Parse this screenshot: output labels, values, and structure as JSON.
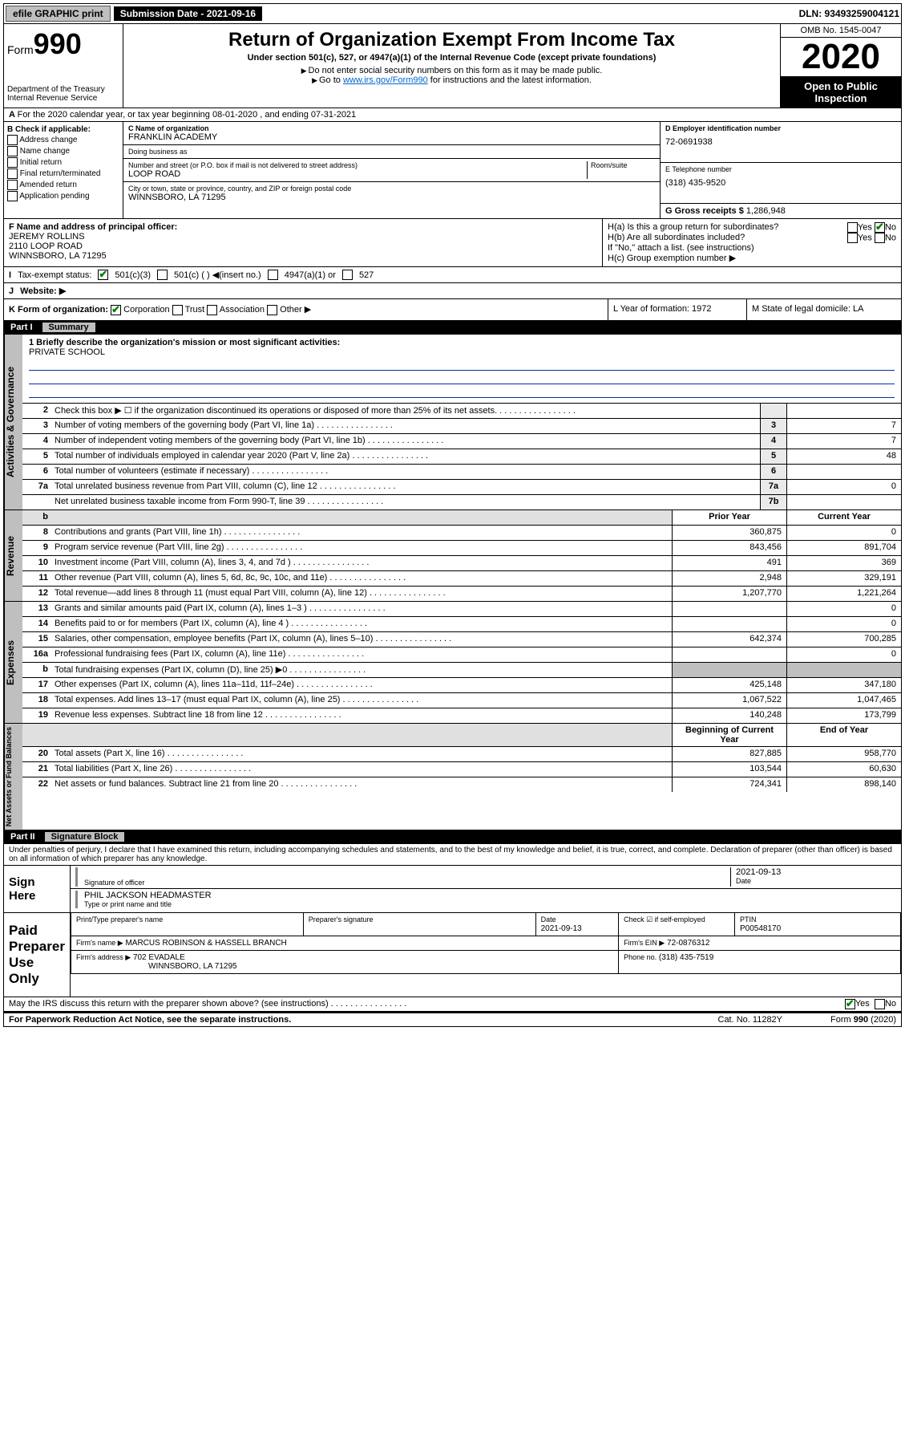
{
  "top": {
    "efile": "efile GRAPHIC print",
    "submission": "Submission Date - 2021-09-16",
    "dln": "DLN: 93493259004121"
  },
  "header": {
    "form_prefix": "Form",
    "form_num": "990",
    "title": "Return of Organization Exempt From Income Tax",
    "subtitle": "Under section 501(c), 527, or 4947(a)(1) of the Internal Revenue Code (except private foundations)",
    "note1": "Do not enter social security numbers on this form as it may be made public.",
    "note2_pre": "Go to ",
    "note2_link": "www.irs.gov/Form990",
    "note2_post": " for instructions and the latest information.",
    "dept": "Department of the Treasury\nInternal Revenue Service",
    "omb": "OMB No. 1545-0047",
    "year": "2020",
    "open": "Open to Public Inspection"
  },
  "rowA": "For the 2020 calendar year, or tax year beginning 08-01-2020   , and ending 07-31-2021",
  "colB": {
    "title": "B Check if applicable:",
    "items": [
      "Address change",
      "Name change",
      "Initial return",
      "Final return/terminated",
      "Amended return",
      "Application pending"
    ]
  },
  "colC": {
    "name_label": "C Name of organization",
    "name": "FRANKLIN ACADEMY",
    "dba_label": "Doing business as",
    "addr_label": "Number and street (or P.O. box if mail is not delivered to street address)",
    "room_label": "Room/suite",
    "addr": "LOOP ROAD",
    "city_label": "City or town, state or province, country, and ZIP or foreign postal code",
    "city": "WINNSBORO, LA  71295"
  },
  "colD": {
    "ein_label": "D Employer identification number",
    "ein": "72-0691938",
    "phone_label": "E Telephone number",
    "phone": "(318) 435-9520",
    "gross_label": "G Gross receipts $",
    "gross": "1,286,948"
  },
  "colF": {
    "label": "F  Name and address of principal officer:",
    "name": "JEREMY ROLLINS",
    "addr1": "2110 LOOP ROAD",
    "addr2": "WINNSBORO, LA  71295"
  },
  "colH": {
    "ha": "H(a)  Is this a group return for subordinates?",
    "hb": "H(b)  Are all subordinates included?",
    "hb_note": "If \"No,\" attach a list. (see instructions)",
    "hc": "H(c)  Group exemption number ▶",
    "yes": "Yes",
    "no": "No"
  },
  "rowI": {
    "label": "Tax-exempt status:",
    "o1": "501(c)(3)",
    "o2": "501(c) (  ) ◀(insert no.)",
    "o3": "4947(a)(1) or",
    "o4": "527"
  },
  "rowJ": {
    "label": "Website: ▶"
  },
  "rowK": {
    "k": "K Form of organization:",
    "corp": "Corporation",
    "trust": "Trust",
    "assoc": "Association",
    "other": "Other ▶",
    "l": "L Year of formation: 1972",
    "m": "M State of legal domicile: LA"
  },
  "part1": {
    "label": "Part I",
    "title": "Summary"
  },
  "mission": {
    "q": "1  Briefly describe the organization's mission or most significant activities:",
    "text": "PRIVATE SCHOOL"
  },
  "governance": {
    "label": "Activities & Governance",
    "rows": [
      {
        "n": "2",
        "d": "Check this box ▶ ☐  if the organization discontinued its operations or disposed of more than 25% of its net assets.",
        "b": "",
        "v": ""
      },
      {
        "n": "3",
        "d": "Number of voting members of the governing body (Part VI, line 1a)",
        "b": "3",
        "v": "7"
      },
      {
        "n": "4",
        "d": "Number of independent voting members of the governing body (Part VI, line 1b)",
        "b": "4",
        "v": "7"
      },
      {
        "n": "5",
        "d": "Total number of individuals employed in calendar year 2020 (Part V, line 2a)",
        "b": "5",
        "v": "48"
      },
      {
        "n": "6",
        "d": "Total number of volunteers (estimate if necessary)",
        "b": "6",
        "v": ""
      },
      {
        "n": "7a",
        "d": "Total unrelated business revenue from Part VIII, column (C), line 12",
        "b": "7a",
        "v": "0"
      },
      {
        "n": "",
        "d": "Net unrelated business taxable income from Form 990-T, line 39",
        "b": "7b",
        "v": ""
      }
    ]
  },
  "revenue": {
    "label": "Revenue",
    "header": {
      "py": "Prior Year",
      "cy": "Current Year"
    },
    "rows": [
      {
        "n": "8",
        "d": "Contributions and grants (Part VIII, line 1h)",
        "py": "360,875",
        "cy": "0"
      },
      {
        "n": "9",
        "d": "Program service revenue (Part VIII, line 2g)",
        "py": "843,456",
        "cy": "891,704"
      },
      {
        "n": "10",
        "d": "Investment income (Part VIII, column (A), lines 3, 4, and 7d )",
        "py": "491",
        "cy": "369"
      },
      {
        "n": "11",
        "d": "Other revenue (Part VIII, column (A), lines 5, 6d, 8c, 9c, 10c, and 11e)",
        "py": "2,948",
        "cy": "329,191"
      },
      {
        "n": "12",
        "d": "Total revenue—add lines 8 through 11 (must equal Part VIII, column (A), line 12)",
        "py": "1,207,770",
        "cy": "1,221,264"
      }
    ]
  },
  "expenses": {
    "label": "Expenses",
    "rows": [
      {
        "n": "13",
        "d": "Grants and similar amounts paid (Part IX, column (A), lines 1–3 )",
        "py": "",
        "cy": "0"
      },
      {
        "n": "14",
        "d": "Benefits paid to or for members (Part IX, column (A), line 4 )",
        "py": "",
        "cy": "0"
      },
      {
        "n": "15",
        "d": "Salaries, other compensation, employee benefits (Part IX, column (A), lines 5–10)",
        "py": "642,374",
        "cy": "700,285"
      },
      {
        "n": "16a",
        "d": "Professional fundraising fees (Part IX, column (A), line 11e)",
        "py": "",
        "cy": "0"
      },
      {
        "n": "b",
        "d": "Total fundraising expenses (Part IX, column (D), line 25) ▶0",
        "py": "",
        "cy": ""
      },
      {
        "n": "17",
        "d": "Other expenses (Part IX, column (A), lines 11a–11d, 11f–24e)",
        "py": "425,148",
        "cy": "347,180"
      },
      {
        "n": "18",
        "d": "Total expenses. Add lines 13–17 (must equal Part IX, column (A), line 25)",
        "py": "1,067,522",
        "cy": "1,047,465"
      },
      {
        "n": "19",
        "d": "Revenue less expenses. Subtract line 18 from line 12",
        "py": "140,248",
        "cy": "173,799"
      }
    ]
  },
  "netassets": {
    "label": "Net Assets or Fund Balances",
    "header": {
      "py": "Beginning of Current Year",
      "cy": "End of Year"
    },
    "rows": [
      {
        "n": "20",
        "d": "Total assets (Part X, line 16)",
        "py": "827,885",
        "cy": "958,770"
      },
      {
        "n": "21",
        "d": "Total liabilities (Part X, line 26)",
        "py": "103,544",
        "cy": "60,630"
      },
      {
        "n": "22",
        "d": "Net assets or fund balances. Subtract line 21 from line 20",
        "py": "724,341",
        "cy": "898,140"
      }
    ]
  },
  "part2": {
    "label": "Part II",
    "title": "Signature Block"
  },
  "perjury": "Under penalties of perjury, I declare that I have examined this return, including accompanying schedules and statements, and to the best of my knowledge and belief, it is true, correct, and complete. Declaration of preparer (other than officer) is based on all information of which preparer has any knowledge.",
  "sign": {
    "here": "Sign Here",
    "sig_officer": "Signature of officer",
    "date": "2021-09-13",
    "date_label": "Date",
    "name": "PHIL JACKSON  HEADMASTER",
    "name_label": "Type or print name and title"
  },
  "paid": {
    "label": "Paid Preparer Use Only",
    "print_label": "Print/Type preparer's name",
    "sig_label": "Preparer's signature",
    "date_label": "Date",
    "date": "2021-09-13",
    "check_label": "Check ☑ if self-employed",
    "ptin_label": "PTIN",
    "ptin": "P00548170",
    "firm_name_label": "Firm's name    ▶",
    "firm_name": "MARCUS ROBINSON & HASSELL BRANCH",
    "firm_ein_label": "Firm's EIN ▶",
    "firm_ein": "72-0876312",
    "firm_addr_label": "Firm's address ▶",
    "firm_addr1": "702 EVADALE",
    "firm_addr2": "WINNSBORO, LA  71295",
    "phone_label": "Phone no.",
    "phone": "(318) 435-7519"
  },
  "discuss": {
    "q": "May the IRS discuss this return with the preparer shown above? (see instructions)",
    "yes": "Yes",
    "no": "No"
  },
  "footer": {
    "pra": "For Paperwork Reduction Act Notice, see the separate instructions.",
    "cat": "Cat. No. 11282Y",
    "form": "Form 990 (2020)"
  }
}
